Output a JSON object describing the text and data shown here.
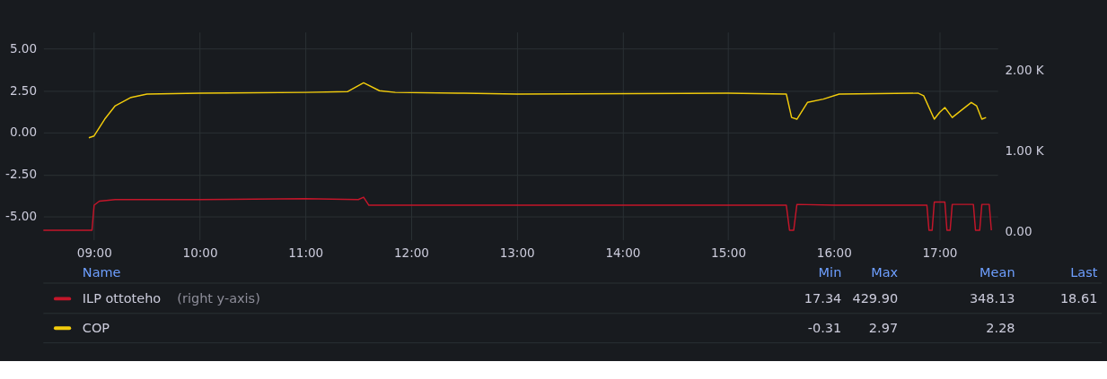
{
  "chart_data": {
    "type": "line",
    "xlim": [
      8.52,
      17.55
    ],
    "xticks": [
      {
        "value": 9,
        "label": "09:00"
      },
      {
        "value": 10,
        "label": "10:00"
      },
      {
        "value": 11,
        "label": "11:00"
      },
      {
        "value": 12,
        "label": "12:00"
      },
      {
        "value": 13,
        "label": "13:00"
      },
      {
        "value": 14,
        "label": "14:00"
      },
      {
        "value": 15,
        "label": "15:00"
      },
      {
        "value": 16,
        "label": "16:00"
      },
      {
        "value": 17,
        "label": "17:00"
      }
    ],
    "ylim": [
      -6.4,
      6.0
    ],
    "yticks": [
      {
        "value": -5,
        "label": "-5.00"
      },
      {
        "value": -2.5,
        "label": "-2.50"
      },
      {
        "value": 0,
        "label": "0.00"
      },
      {
        "value": 2.5,
        "label": "2.50"
      },
      {
        "value": 5,
        "label": "5.00"
      }
    ],
    "y2lim": [
      -100,
      2480
    ],
    "y2ticks": [
      {
        "value": 0,
        "label": "0.00"
      },
      {
        "value": 1000,
        "label": "1.00 K"
      },
      {
        "value": 2000,
        "label": "2.00 K"
      }
    ],
    "series": [
      {
        "name": "ILP ottoteho",
        "color": "#c4162a",
        "axis": "y2",
        "x": [
          8.52,
          8.98,
          9.0,
          9.05,
          9.2,
          10.0,
          11.0,
          11.5,
          11.55,
          11.6,
          12.0,
          15.55,
          15.58,
          15.62,
          15.65,
          16.0,
          16.88,
          16.9,
          16.93,
          16.95,
          17.05,
          17.07,
          17.1,
          17.12,
          17.32,
          17.34,
          17.38,
          17.4,
          17.47,
          17.49
        ],
        "values": [
          20,
          20,
          330,
          380,
          400,
          400,
          410,
          400,
          430,
          330,
          330,
          330,
          20,
          20,
          340,
          330,
          330,
          20,
          20,
          370,
          370,
          20,
          20,
          340,
          340,
          20,
          20,
          340,
          340,
          18.61
        ]
      },
      {
        "name": "COP",
        "color": "#f2cc0c",
        "x": [
          8.95,
          9.0,
          9.1,
          9.2,
          9.35,
          9.5,
          10.0,
          11.0,
          11.4,
          11.55,
          11.7,
          11.85,
          12.5,
          13.0,
          15.0,
          15.55,
          15.6,
          15.65,
          15.75,
          15.9,
          16.05,
          16.8,
          16.85,
          16.95,
          17.0,
          17.05,
          17.12,
          17.2,
          17.3,
          17.35,
          17.4,
          17.44
        ],
        "values": [
          -0.31,
          -0.2,
          0.8,
          1.6,
          2.1,
          2.3,
          2.35,
          2.4,
          2.45,
          2.97,
          2.5,
          2.4,
          2.35,
          2.3,
          2.35,
          2.3,
          0.9,
          0.8,
          1.8,
          2.0,
          2.3,
          2.35,
          2.2,
          0.8,
          1.2,
          1.5,
          0.9,
          1.3,
          1.8,
          1.6,
          0.8,
          0.9
        ]
      }
    ],
    "annotations": [
      "Name",
      "Min",
      "Max",
      "Mean",
      "Last",
      "(right y-axis)",
      "17.34",
      "429.90",
      "348.13",
      "18.61",
      "-0.31",
      "2.97",
      "2.28"
    ],
    "grid": true,
    "legend": "bottom",
    "marker": "none",
    "line_style": "solid"
  }
}
